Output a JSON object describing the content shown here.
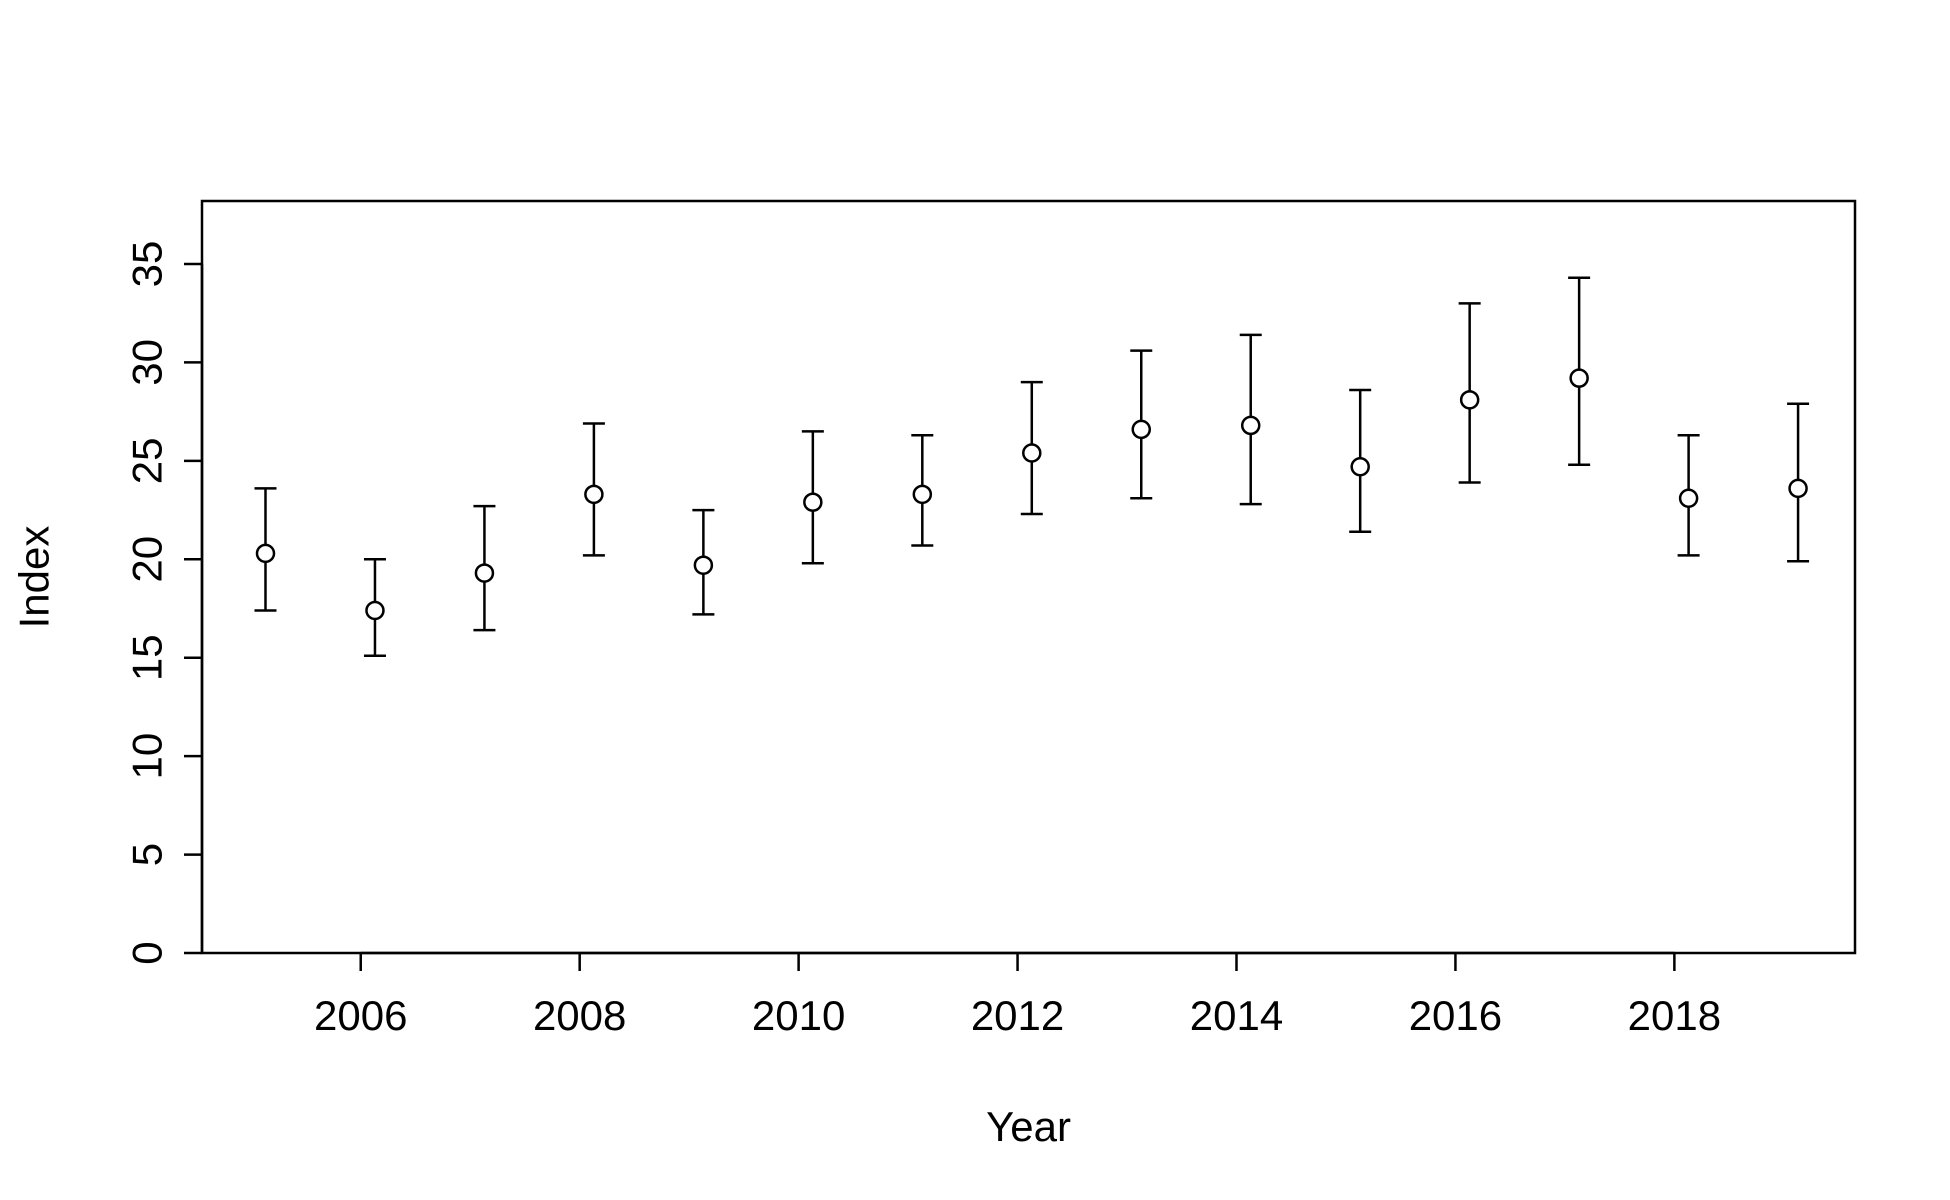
{
  "chart_data": {
    "type": "scatter",
    "title": "",
    "xlabel": "Year",
    "ylabel": "Index",
    "xlim": [
      2004.55,
      2019.65
    ],
    "ylim": [
      0,
      38.2
    ],
    "x_ticks": [
      2006,
      2008,
      2010,
      2012,
      2014,
      2016,
      2018
    ],
    "y_ticks": [
      0,
      5,
      10,
      15,
      20,
      25,
      30,
      35
    ],
    "grid": false,
    "legend": "none",
    "colors": {
      "marker_fill": "#ffffff",
      "marker_stroke": "#000000",
      "errorbar": "#000000",
      "frame": "#000000"
    },
    "series": [
      {
        "x": [
          2005.13,
          2006.13,
          2007.13,
          2008.13,
          2009.13,
          2010.13,
          2011.13,
          2012.13,
          2013.13,
          2014.13,
          2015.13,
          2016.13,
          2017.13,
          2018.13,
          2019.13
        ],
        "y": [
          20.3,
          17.4,
          19.3,
          23.3,
          19.7,
          22.9,
          23.3,
          25.4,
          26.6,
          26.8,
          24.7,
          28.1,
          29.2,
          23.1,
          23.6
        ],
        "lower": [
          17.4,
          15.1,
          16.4,
          20.2,
          17.2,
          19.8,
          20.7,
          22.3,
          23.1,
          22.8,
          21.4,
          23.9,
          24.8,
          20.2,
          19.9
        ],
        "upper": [
          23.6,
          20.0,
          22.7,
          26.9,
          22.5,
          26.5,
          26.3,
          29.0,
          30.6,
          31.4,
          28.6,
          33.0,
          34.3,
          26.3,
          27.9
        ]
      }
    ]
  }
}
